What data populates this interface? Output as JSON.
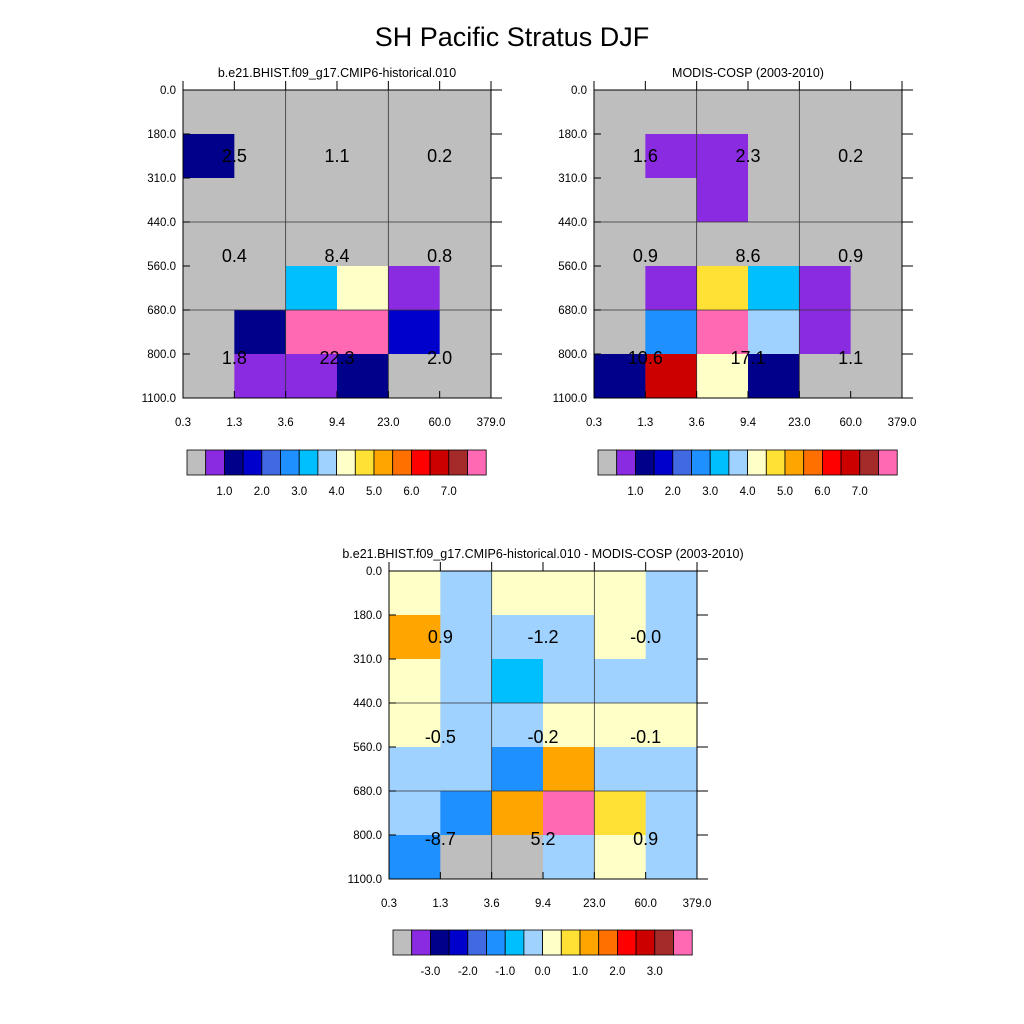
{
  "title": "SH Pacific Stratus DJF",
  "palette": [
    "#bebebe",
    "#8a2be2",
    "#00008b",
    "#0000cd",
    "#4169e1",
    "#1e90ff",
    "#00bfff",
    "#a0d2ff",
    "#ffffc8",
    "#ffe135",
    "#ffa500",
    "#ff7000",
    "#ff0000",
    "#cd0000",
    "#a52a2a",
    "#ff69b4"
  ],
  "chart_data": [
    {
      "type": "heatmap",
      "title": "b.e21.BHIST.f09_g17.CMIP6-historical.010",
      "xticks": [
        "0.3",
        "1.3",
        "3.6",
        "9.4",
        "23.0",
        "60.0",
        "379.0"
      ],
      "yticks": [
        "0.0",
        "180.0",
        "310.0",
        "440.0",
        "560.0",
        "680.0",
        "800.0",
        "1100.0"
      ],
      "cells": [
        [
          0,
          0,
          0,
          0,
          0,
          0
        ],
        [
          2,
          0,
          0,
          0,
          0,
          0
        ],
        [
          0,
          0,
          0,
          0,
          0,
          0
        ],
        [
          0,
          0,
          0,
          0,
          0,
          0
        ],
        [
          0,
          0,
          6,
          8,
          1,
          0
        ],
        [
          0,
          2,
          15,
          15,
          3,
          0
        ],
        [
          0,
          1,
          1,
          2,
          0,
          0
        ]
      ],
      "box_values": [
        [
          "2.5",
          "1.1",
          "0.2"
        ],
        [
          "0.4",
          "8.4",
          "0.8"
        ],
        [
          "1.8",
          "22.3",
          "2.0"
        ]
      ],
      "colorbar_labels": [
        "1.0",
        "2.0",
        "3.0",
        "4.0",
        "5.0",
        "6.0",
        "7.0"
      ]
    },
    {
      "type": "heatmap",
      "title": "MODIS-COSP (2003-2010)",
      "xticks": [
        "0.3",
        "1.3",
        "3.6",
        "9.4",
        "23.0",
        "60.0",
        "379.0"
      ],
      "yticks": [
        "0.0",
        "180.0",
        "310.0",
        "440.0",
        "560.0",
        "680.0",
        "800.0",
        "1100.0"
      ],
      "cells": [
        [
          0,
          0,
          0,
          0,
          0,
          0
        ],
        [
          0,
          1,
          1,
          0,
          0,
          0
        ],
        [
          0,
          0,
          1,
          0,
          0,
          0
        ],
        [
          0,
          0,
          0,
          0,
          0,
          0
        ],
        [
          0,
          1,
          9,
          6,
          1,
          0
        ],
        [
          0,
          5,
          15,
          7,
          1,
          0
        ],
        [
          2,
          13,
          8,
          2,
          0,
          0
        ]
      ],
      "box_values": [
        [
          "1.6",
          "2.3",
          "0.2"
        ],
        [
          "0.9",
          "8.6",
          "0.9"
        ],
        [
          "10.6",
          "17.1",
          "1.1"
        ]
      ],
      "colorbar_labels": [
        "1.0",
        "2.0",
        "3.0",
        "4.0",
        "5.0",
        "6.0",
        "7.0"
      ]
    },
    {
      "type": "heatmap",
      "title": "b.e21.BHIST.f09_g17.CMIP6-historical.010 - MODIS-COSP (2003-2010)",
      "xticks": [
        "0.3",
        "1.3",
        "3.6",
        "9.4",
        "23.0",
        "60.0",
        "379.0"
      ],
      "yticks": [
        "0.0",
        "180.0",
        "310.0",
        "440.0",
        "560.0",
        "680.0",
        "800.0",
        "1100.0"
      ],
      "cells": [
        [
          8,
          7,
          8,
          8,
          8,
          7
        ],
        [
          10,
          7,
          7,
          7,
          8,
          7
        ],
        [
          8,
          7,
          6,
          7,
          7,
          7
        ],
        [
          8,
          7,
          7,
          8,
          8,
          8
        ],
        [
          7,
          7,
          5,
          10,
          7,
          7
        ],
        [
          7,
          5,
          10,
          15,
          9,
          7
        ],
        [
          5,
          0,
          0,
          7,
          8,
          7
        ]
      ],
      "box_values": [
        [
          "0.9",
          "-1.2",
          "-0.0"
        ],
        [
          "-0.5",
          "-0.2",
          "-0.1"
        ],
        [
          "-8.7",
          "5.2",
          "0.9"
        ]
      ],
      "colorbar_labels": [
        "-3.0",
        "-2.0",
        "-1.0",
        "0.0",
        "1.0",
        "2.0",
        "3.0"
      ]
    }
  ]
}
